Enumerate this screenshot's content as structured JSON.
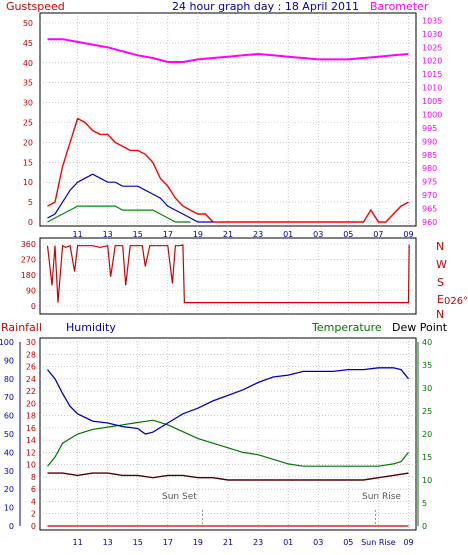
{
  "colors": {
    "gust": "#ff0000",
    "wind": "#0000cc",
    "windlow": "#008800",
    "barometer": "#ff00ff",
    "direction": "#cc0000",
    "humidity": "#0000cc",
    "temperature": "#007700",
    "dewpoint": "#550000",
    "rainfall": "#cc0000",
    "axis": "#008888",
    "grid": "#a8a8a8",
    "title": "#0000aa",
    "leftlabel": "#cc0000",
    "rightlabel": "#ff00ff",
    "sun": "#555555"
  },
  "header": {
    "left": "Gustspeed",
    "title": "24 hour graph day : 18 April 2011",
    "right": "Barometer"
  },
  "lower_labels": {
    "rainfall": "Rainfall",
    "humidity": "Humidity",
    "temperature": "Temperature",
    "dewpoint": "Dew Point"
  },
  "direction": {
    "compass": [
      "N",
      "W",
      "S",
      "E",
      "N"
    ],
    "current": "026°"
  },
  "sun": {
    "set": "Sun Set",
    "rise": "Sun Rise"
  },
  "chart_data": [
    {
      "type": "line",
      "title": "24 hour graph day : 18 April 2011",
      "x_ticks": [
        "11",
        "13",
        "15",
        "17",
        "19",
        "21",
        "23",
        "01",
        "03",
        "05",
        "07",
        "09"
      ],
      "y_left_label": "Gustspeed",
      "y_left_ticks": [
        0,
        5,
        10,
        15,
        20,
        25,
        30,
        35,
        40,
        45,
        50
      ],
      "y_left_range": [
        0,
        50
      ],
      "y_right_label": "Barometer",
      "y_right_ticks": [
        960,
        965,
        970,
        975,
        980,
        985,
        990,
        995,
        1000,
        1005,
        1010,
        1015,
        1020,
        1025,
        1030,
        1035
      ],
      "y_right_range": [
        960,
        1037
      ],
      "series": [
        {
          "name": "Barometer",
          "axis": "right",
          "x": [
            9.0,
            10.0,
            11.0,
            12.0,
            13.0,
            14.0,
            15.0,
            16.0,
            17.0,
            18.0,
            19.0,
            20.0,
            21.0,
            22.0,
            23.0,
            24.0,
            25.0,
            26.0,
            27.0,
            28.0,
            29.0,
            30.0,
            31.0,
            32.0,
            33.0
          ],
          "values": [
            1028,
            1028,
            1027,
            1026,
            1025,
            1023.5,
            1022,
            1021,
            1019.5,
            1019.5,
            1020.5,
            1021,
            1021.5,
            1022,
            1022.5,
            1022,
            1021.5,
            1021,
            1020.5,
            1020.5,
            1020.5,
            1021,
            1021.5,
            1022,
            1022.5
          ]
        },
        {
          "name": "Gustspeed",
          "axis": "left",
          "x": [
            9.0,
            9.5,
            10.0,
            10.5,
            11.0,
            11.5,
            12.0,
            12.5,
            13.0,
            13.5,
            14.0,
            14.5,
            15.0,
            15.5,
            16.0,
            16.5,
            17.0,
            17.5,
            18.0,
            18.5,
            19.0,
            19.5,
            20.0,
            21.0,
            23.0,
            25.0,
            27.0,
            29.0,
            30.0,
            30.5,
            31.0,
            31.5,
            32.0,
            32.5,
            33.0
          ],
          "values": [
            4,
            5,
            14,
            20,
            26,
            25,
            23,
            22,
            22,
            20,
            19,
            18,
            18,
            17,
            15,
            11,
            9,
            6,
            4,
            3,
            2,
            2,
            0,
            0,
            0,
            0,
            0,
            0,
            0,
            3,
            0,
            0,
            2,
            4,
            5
          ]
        },
        {
          "name": "Windspeed",
          "axis": "left",
          "x": [
            9.0,
            9.5,
            10.0,
            10.5,
            11.0,
            11.5,
            12.0,
            12.5,
            13.0,
            13.5,
            14.0,
            14.5,
            15.0,
            15.5,
            16.0,
            16.5,
            17.0,
            17.5,
            18.0,
            18.5,
            19.0,
            20.0
          ],
          "values": [
            1,
            2,
            5,
            8,
            10,
            11,
            12,
            11,
            10,
            10,
            9,
            9,
            9,
            8,
            7,
            6,
            4,
            3,
            2,
            1,
            0,
            0
          ]
        },
        {
          "name": "Wind low",
          "axis": "left",
          "x": [
            9.0,
            9.5,
            10.0,
            10.5,
            11.0,
            11.5,
            12.0,
            12.5,
            13.0,
            13.5,
            14.0,
            14.5,
            15.0,
            15.5,
            16.0,
            16.5,
            17.0,
            17.5,
            18.0,
            18.5
          ],
          "values": [
            0,
            1,
            2,
            3,
            4,
            4,
            4,
            4,
            4,
            4,
            3,
            3,
            3,
            3,
            3,
            2,
            1,
            0,
            0,
            0
          ]
        }
      ]
    },
    {
      "type": "line",
      "y_ticks": [
        0,
        90,
        180,
        270,
        360
      ],
      "y_range": [
        0,
        360
      ],
      "series": [
        {
          "name": "Wind direction",
          "x": [
            9.0,
            9.3,
            9.5,
            9.7,
            10.0,
            10.2,
            10.5,
            10.8,
            11.0,
            11.5,
            12.0,
            12.5,
            13.0,
            13.2,
            13.5,
            14.0,
            14.2,
            14.5,
            15.0,
            15.3,
            15.5,
            15.8,
            16.0,
            16.5,
            17.0,
            17.3,
            17.5,
            17.8,
            18.0,
            18.1,
            33.0,
            33.05
          ],
          "values": [
            350,
            120,
            350,
            20,
            350,
            340,
            350,
            200,
            350,
            350,
            350,
            340,
            350,
            170,
            350,
            350,
            120,
            350,
            350,
            350,
            230,
            350,
            350,
            350,
            350,
            130,
            350,
            350,
            355,
            20,
            20,
            355
          ]
        }
      ]
    },
    {
      "type": "line",
      "x_ticks": [
        "11",
        "13",
        "15",
        "17",
        "19",
        "21",
        "23",
        "01",
        "03",
        "05",
        "Sun Rise",
        "09"
      ],
      "y_rain_ticks": [
        0,
        2,
        4,
        6,
        8,
        10,
        12,
        14,
        16,
        18,
        20,
        22,
        24,
        26,
        28,
        30
      ],
      "y_humidity_ticks": [
        0,
        10,
        20,
        30,
        40,
        50,
        60,
        70,
        80,
        90,
        100
      ],
      "y_humidity_range": [
        0,
        100
      ],
      "y_temp_ticks": [
        0,
        5,
        10,
        15,
        20,
        25,
        30,
        35,
        40
      ],
      "y_temp_range": [
        0,
        40
      ],
      "series": [
        {
          "name": "Humidity",
          "axis": "humidity",
          "x": [
            9.0,
            9.5,
            10.0,
            10.5,
            11.0,
            12.0,
            13.0,
            14.0,
            15.0,
            15.5,
            16.0,
            17.0,
            18.0,
            19.0,
            20.0,
            21.0,
            22.0,
            23.0,
            24.0,
            25.0,
            26.0,
            27.0,
            28.0,
            29.0,
            30.0,
            31.0,
            32.0,
            32.5,
            33.0
          ],
          "values": [
            85,
            80,
            72,
            65,
            61,
            57,
            56,
            54,
            53,
            50,
            51,
            56,
            61,
            64,
            68,
            71,
            74,
            78,
            81,
            82,
            84,
            84,
            84,
            85,
            85,
            86,
            86,
            85,
            80
          ]
        },
        {
          "name": "Temperature",
          "axis": "temp",
          "x": [
            9.0,
            9.5,
            10.0,
            11.0,
            12.0,
            13.0,
            14.0,
            15.0,
            16.0,
            17.0,
            18.0,
            19.0,
            20.0,
            21.0,
            22.0,
            23.0,
            24.0,
            25.0,
            26.0,
            27.0,
            28.0,
            29.0,
            30.0,
            31.0,
            32.0,
            32.5,
            33.0
          ],
          "values": [
            13,
            15,
            18,
            20,
            21,
            21.5,
            22,
            22.5,
            23,
            22,
            20.5,
            19,
            18,
            17,
            16,
            15.5,
            14.5,
            13.5,
            13,
            13,
            13,
            13,
            13,
            13,
            13.5,
            14,
            16
          ]
        },
        {
          "name": "Dew Point",
          "axis": "temp",
          "x": [
            9.0,
            10.0,
            11.0,
            12.0,
            13.0,
            14.0,
            15.0,
            16.0,
            17.0,
            18.0,
            19.0,
            20.0,
            21.0,
            22.0,
            23.0,
            24.0,
            25.0,
            26.0,
            27.0,
            28.0,
            29.0,
            30.0,
            31.0,
            32.0,
            33.0
          ],
          "values": [
            11.5,
            11.5,
            11,
            11.5,
            11.5,
            11,
            11,
            10.5,
            11,
            11,
            10.5,
            10.5,
            10,
            10,
            10,
            10,
            10,
            10,
            10,
            10,
            10,
            10,
            10.5,
            11,
            11.5
          ]
        },
        {
          "name": "Rainfall",
          "axis": "rain",
          "x": [
            9.0,
            33.0
          ],
          "values": [
            0,
            0
          ]
        }
      ]
    }
  ]
}
